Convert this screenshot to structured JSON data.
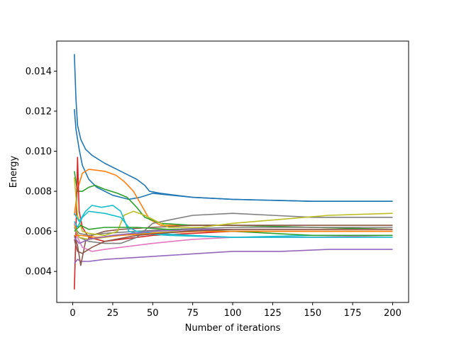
{
  "chart_data": {
    "type": "line",
    "title": "",
    "xlabel": "Number of iterations",
    "ylabel": "Energy",
    "xlim": [
      -10,
      210
    ],
    "ylim": [
      0.00245,
      0.0155
    ],
    "xticks": [
      0,
      25,
      50,
      75,
      100,
      125,
      150,
      175,
      200
    ],
    "yticks": [
      0.004,
      0.006,
      0.008,
      0.01,
      0.012,
      0.014
    ],
    "ytick_labels": [
      "0.004",
      "0.006",
      "0.008",
      "0.010",
      "0.012",
      "0.014"
    ],
    "grid": false,
    "legend": "none",
    "series": [
      {
        "color": "#1f77b4",
        "points": [
          [
            1,
            0.01485
          ],
          [
            2,
            0.0126
          ],
          [
            3,
            0.0113
          ],
          [
            5,
            0.0106
          ],
          [
            8,
            0.0101
          ],
          [
            12,
            0.0098
          ],
          [
            20,
            0.0094
          ],
          [
            30,
            0.009
          ],
          [
            40,
            0.0086
          ],
          [
            45,
            0.0083
          ],
          [
            48,
            0.008
          ],
          [
            55,
            0.0079
          ],
          [
            75,
            0.0077
          ],
          [
            100,
            0.0076
          ],
          [
            150,
            0.0075
          ],
          [
            200,
            0.0075
          ]
        ]
      },
      {
        "color": "#1f77b4",
        "points": [
          [
            1,
            0.0121
          ],
          [
            2,
            0.0111
          ],
          [
            4,
            0.0101
          ],
          [
            6,
            0.0093
          ],
          [
            10,
            0.0086
          ],
          [
            15,
            0.0082
          ],
          [
            25,
            0.0078
          ],
          [
            35,
            0.0076
          ],
          [
            42,
            0.0077
          ],
          [
            50,
            0.0079
          ],
          [
            75,
            0.0077
          ],
          [
            100,
            0.0076
          ],
          [
            150,
            0.0075
          ],
          [
            200,
            0.0075
          ]
        ]
      },
      {
        "color": "#ff7f0e",
        "points": [
          [
            1,
            0.0068
          ],
          [
            3,
            0.0081
          ],
          [
            6,
            0.0089
          ],
          [
            10,
            0.0091
          ],
          [
            20,
            0.009
          ],
          [
            27,
            0.0088
          ],
          [
            32,
            0.0085
          ],
          [
            38,
            0.008
          ],
          [
            43,
            0.0073
          ],
          [
            48,
            0.0066
          ],
          [
            55,
            0.0063
          ],
          [
            75,
            0.0063
          ],
          [
            100,
            0.0063
          ],
          [
            150,
            0.0062
          ],
          [
            200,
            0.0061
          ]
        ]
      },
      {
        "color": "#2ca02c",
        "points": [
          [
            1,
            0.009
          ],
          [
            3,
            0.008
          ],
          [
            6,
            0.008
          ],
          [
            10,
            0.0082
          ],
          [
            14,
            0.0083
          ],
          [
            20,
            0.0081
          ],
          [
            28,
            0.0079
          ],
          [
            34,
            0.0077
          ],
          [
            40,
            0.0072
          ],
          [
            45,
            0.0067
          ],
          [
            55,
            0.0064
          ],
          [
            75,
            0.0063
          ],
          [
            100,
            0.0063
          ],
          [
            150,
            0.0062
          ],
          [
            200,
            0.0061
          ]
        ]
      },
      {
        "color": "#d62728",
        "points": [
          [
            1,
            0.0031
          ],
          [
            2,
            0.006
          ],
          [
            3,
            0.0097
          ],
          [
            4,
            0.007
          ],
          [
            6,
            0.0062
          ],
          [
            10,
            0.0057
          ],
          [
            20,
            0.0055
          ],
          [
            30,
            0.0056
          ],
          [
            50,
            0.0058
          ],
          [
            75,
            0.0059
          ],
          [
            100,
            0.006
          ],
          [
            150,
            0.006
          ],
          [
            200,
            0.006
          ]
        ]
      },
      {
        "color": "#9467bd",
        "points": [
          [
            1,
            0.0044
          ],
          [
            3,
            0.0046
          ],
          [
            5,
            0.0045
          ],
          [
            10,
            0.0045
          ],
          [
            20,
            0.0046
          ],
          [
            40,
            0.0047
          ],
          [
            60,
            0.0048
          ],
          [
            80,
            0.0049
          ],
          [
            100,
            0.005
          ],
          [
            130,
            0.005
          ],
          [
            160,
            0.0051
          ],
          [
            200,
            0.0051
          ]
        ]
      },
      {
        "color": "#8c564b",
        "points": [
          [
            1,
            0.0058
          ],
          [
            3,
            0.0053
          ],
          [
            5,
            0.0043
          ],
          [
            8,
            0.0055
          ],
          [
            12,
            0.0058
          ],
          [
            20,
            0.006
          ],
          [
            30,
            0.0061
          ],
          [
            50,
            0.0062
          ],
          [
            75,
            0.0063
          ],
          [
            100,
            0.0063
          ],
          [
            150,
            0.0063
          ],
          [
            200,
            0.0063
          ]
        ]
      },
      {
        "color": "#e377c2",
        "points": [
          [
            1,
            0.0064
          ],
          [
            3,
            0.0057
          ],
          [
            6,
            0.0052
          ],
          [
            12,
            0.005
          ],
          [
            20,
            0.0051
          ],
          [
            30,
            0.0052
          ],
          [
            50,
            0.0054
          ],
          [
            75,
            0.0056
          ],
          [
            100,
            0.0057
          ],
          [
            150,
            0.0057
          ],
          [
            200,
            0.0058
          ]
        ]
      },
      {
        "color": "#7f7f7f",
        "points": [
          [
            1,
            0.0062
          ],
          [
            4,
            0.0057
          ],
          [
            10,
            0.0055
          ],
          [
            20,
            0.0054
          ],
          [
            30,
            0.0054
          ],
          [
            40,
            0.0057
          ],
          [
            50,
            0.0064
          ],
          [
            75,
            0.0068
          ],
          [
            100,
            0.0069
          ],
          [
            125,
            0.0068
          ],
          [
            150,
            0.0067
          ],
          [
            200,
            0.0067
          ]
        ]
      },
      {
        "color": "#7f7f7f",
        "points": [
          [
            1,
            0.0062
          ],
          [
            4,
            0.0059
          ],
          [
            10,
            0.0058
          ],
          [
            20,
            0.0059
          ],
          [
            40,
            0.006
          ],
          [
            60,
            0.0061
          ],
          [
            100,
            0.0062
          ],
          [
            150,
            0.0062
          ],
          [
            200,
            0.0062
          ]
        ]
      },
      {
        "color": "#bcbd22",
        "points": [
          [
            1,
            0.0087
          ],
          [
            3,
            0.0068
          ],
          [
            6,
            0.006
          ],
          [
            10,
            0.0059
          ],
          [
            20,
            0.0058
          ],
          [
            28,
            0.006
          ],
          [
            32,
            0.0068
          ],
          [
            38,
            0.007
          ],
          [
            45,
            0.0068
          ],
          [
            60,
            0.0062
          ],
          [
            80,
            0.0062
          ],
          [
            100,
            0.0064
          ],
          [
            130,
            0.0066
          ],
          [
            160,
            0.0068
          ],
          [
            200,
            0.0069
          ]
        ]
      },
      {
        "color": "#bcbd22",
        "points": [
          [
            1,
            0.0063
          ],
          [
            4,
            0.0057
          ],
          [
            10,
            0.0056
          ],
          [
            20,
            0.0057
          ],
          [
            40,
            0.0059
          ],
          [
            70,
            0.006
          ],
          [
            100,
            0.006
          ],
          [
            150,
            0.006
          ],
          [
            200,
            0.006
          ]
        ]
      },
      {
        "color": "#17becf",
        "points": [
          [
            1,
            0.0065
          ],
          [
            3,
            0.0062
          ],
          [
            6,
            0.0067
          ],
          [
            10,
            0.007
          ],
          [
            20,
            0.0069
          ],
          [
            30,
            0.0067
          ],
          [
            35,
            0.0062
          ],
          [
            40,
            0.006
          ],
          [
            50,
            0.0059
          ],
          [
            75,
            0.0058
          ],
          [
            100,
            0.0057
          ],
          [
            150,
            0.0058
          ],
          [
            200,
            0.0058
          ]
        ]
      },
      {
        "color": "#17becf",
        "points": [
          [
            1,
            0.0069
          ],
          [
            4,
            0.0065
          ],
          [
            8,
            0.007
          ],
          [
            12,
            0.0073
          ],
          [
            18,
            0.0072
          ],
          [
            25,
            0.0073
          ],
          [
            30,
            0.007
          ],
          [
            35,
            0.006
          ],
          [
            40,
            0.0059
          ],
          [
            60,
            0.0058
          ],
          [
            100,
            0.0057
          ],
          [
            150,
            0.0057
          ],
          [
            200,
            0.0057
          ]
        ]
      },
      {
        "color": "#2ca02c",
        "points": [
          [
            1,
            0.006
          ],
          [
            5,
            0.0063
          ],
          [
            10,
            0.0061
          ],
          [
            20,
            0.0062
          ],
          [
            40,
            0.0062
          ],
          [
            60,
            0.0061
          ],
          [
            100,
            0.006
          ],
          [
            150,
            0.0058
          ],
          [
            200,
            0.0058
          ]
        ]
      },
      {
        "color": "#ff7f0e",
        "points": [
          [
            1,
            0.0058
          ],
          [
            5,
            0.0058
          ],
          [
            15,
            0.0057
          ],
          [
            30,
            0.0058
          ],
          [
            50,
            0.0059
          ],
          [
            80,
            0.006
          ],
          [
            120,
            0.006
          ],
          [
            160,
            0.006
          ],
          [
            200,
            0.006
          ]
        ]
      },
      {
        "color": "#9467bd",
        "points": [
          [
            1,
            0.0057
          ],
          [
            4,
            0.0054
          ],
          [
            10,
            0.0056
          ],
          [
            25,
            0.0058
          ],
          [
            50,
            0.006
          ],
          [
            80,
            0.0061
          ],
          [
            120,
            0.0061
          ],
          [
            200,
            0.0061
          ]
        ]
      },
      {
        "color": "#8c564b",
        "points": [
          [
            1,
            0.0056
          ],
          [
            3,
            0.005
          ],
          [
            6,
            0.0049
          ],
          [
            12,
            0.0052
          ],
          [
            20,
            0.0055
          ],
          [
            40,
            0.0058
          ],
          [
            70,
            0.006
          ],
          [
            100,
            0.0061
          ],
          [
            150,
            0.0061
          ],
          [
            200,
            0.0061
          ]
        ]
      }
    ]
  }
}
